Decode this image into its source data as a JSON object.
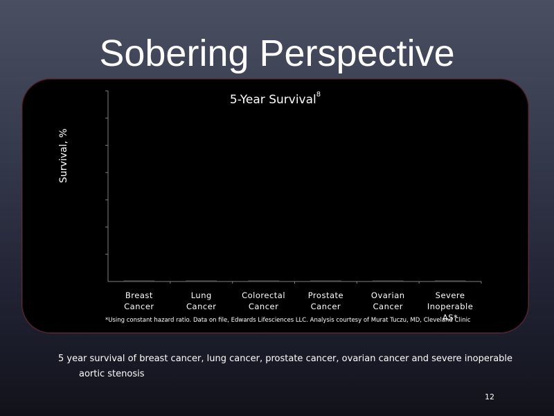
{
  "slide": {
    "title": "Sobering Perspective",
    "caption_line1": "5 year survival of breast cancer, lung cancer, prostate cancer, ovarian cancer and severe inoperable",
    "caption_line2": "aortic stenosis",
    "page_number": "12"
  },
  "chart_data": {
    "type": "bar",
    "title": "5-Year Survival",
    "title_superscript": "8",
    "xlabel": "",
    "ylabel": "Survival, %",
    "categories": [
      [
        "Breast",
        "Cancer"
      ],
      [
        "Lung",
        "Cancer"
      ],
      [
        "Colorectal",
        "Cancer"
      ],
      [
        "Prostate",
        "Cancer"
      ],
      [
        "Ovarian",
        "Cancer"
      ],
      [
        "Severe",
        "Inoperable",
        "AS*"
      ]
    ],
    "values": [
      0,
      0,
      0,
      0,
      0,
      0
    ],
    "ylim": [
      0,
      100
    ],
    "y_tick_count": 7,
    "grid": false,
    "footnote": "*Using constant hazard ratio. Data on file, Edwards Lifesciences LLC. Analysis courtesy of Murat Tuczu, MD, Cleveland Clinic",
    "colors": {
      "axis": "#808080",
      "bar": "#505050",
      "panel": "#000000",
      "panel_border": "#5a2c36"
    }
  }
}
